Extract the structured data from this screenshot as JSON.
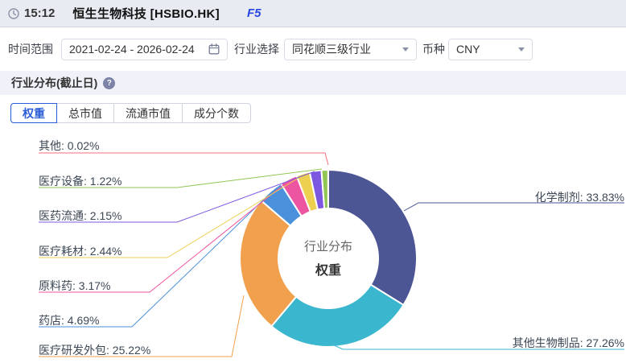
{
  "titlebar": {
    "time": "15:12",
    "title": "恒生生物科技 [HSBIO.HK]",
    "shortcut": "F5"
  },
  "filters": {
    "date_range_label": "时间范围",
    "date_range_value": "2021-02-24 - 2026-02-24",
    "industry_label": "行业选择",
    "industry_value": "同花顺三级行业",
    "currency_label": "币种",
    "currency_value": "CNY"
  },
  "section": {
    "title": "行业分布(截止日)",
    "help_glyph": "?"
  },
  "tabs": [
    {
      "label": "权重",
      "active": true
    },
    {
      "label": "总市值",
      "active": false
    },
    {
      "label": "流通市值",
      "active": false
    },
    {
      "label": "成分个数",
      "active": false
    }
  ],
  "chart_data": {
    "type": "pie",
    "title": "行业分布",
    "subtitle": "权重",
    "unit": "%",
    "legend_position": "callout-labels",
    "series": [
      {
        "name": "化学制剂",
        "value": 33.83,
        "color": "#4d5695"
      },
      {
        "name": "其他生物制品",
        "value": 27.26,
        "color": "#3ab7ce"
      },
      {
        "name": "医疗研发外包",
        "value": 25.22,
        "color": "#f1a04d"
      },
      {
        "name": "药店",
        "value": 4.69,
        "color": "#4a90db"
      },
      {
        "name": "原料药",
        "value": 3.17,
        "color": "#ee55a0"
      },
      {
        "name": "医疗耗材",
        "value": 2.44,
        "color": "#edd050"
      },
      {
        "name": "医药流通",
        "value": 2.15,
        "color": "#7c58e0"
      },
      {
        "name": "医疗设备",
        "value": 1.22,
        "color": "#91c653"
      },
      {
        "name": "其他",
        "value": 0.02,
        "color": "#f1707e"
      }
    ]
  }
}
